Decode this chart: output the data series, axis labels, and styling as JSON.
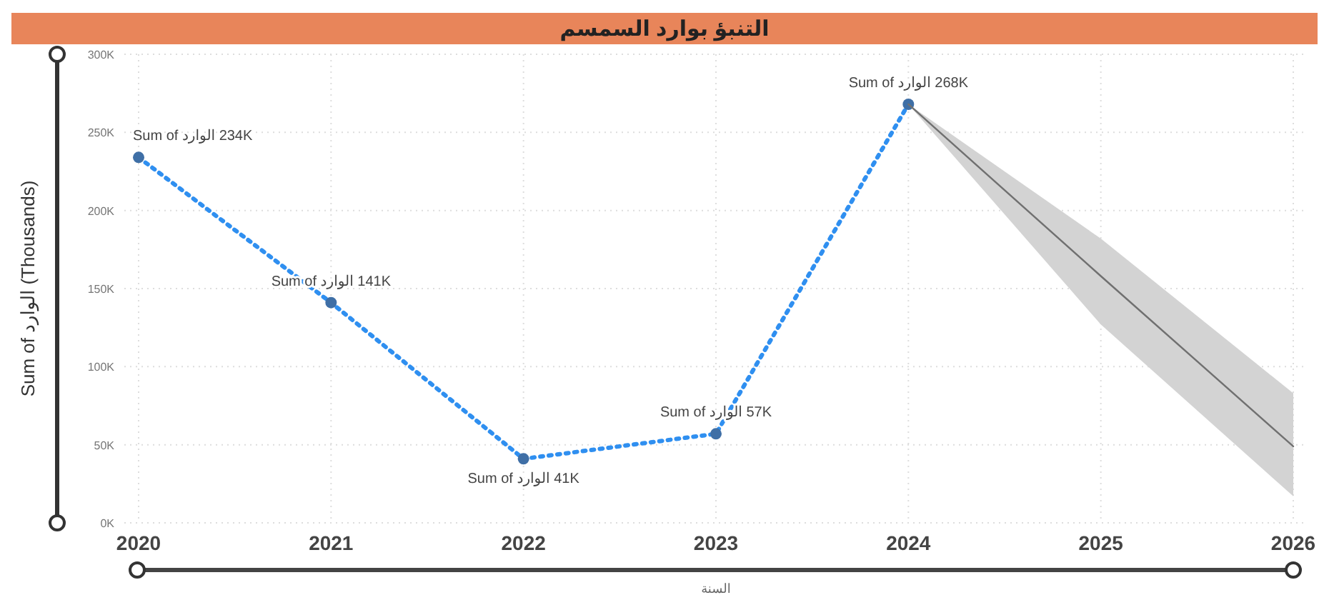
{
  "chart_data": {
    "type": "line",
    "title": "التنبؤ بوارد السمسم",
    "xlabel": "السنة",
    "ylabel": "Sum of الوارد (Thousands)",
    "xlim": [
      2020,
      2026
    ],
    "xticks": [
      2020,
      2021,
      2022,
      2023,
      2024,
      2025,
      2026
    ],
    "ylim": [
      0,
      300
    ],
    "yticks": [
      {
        "value": 0,
        "label": "0K"
      },
      {
        "value": 50,
        "label": "50K"
      },
      {
        "value": 100,
        "label": "100K"
      },
      {
        "value": 150,
        "label": "150K"
      },
      {
        "value": 200,
        "label": "200K"
      },
      {
        "value": 250,
        "label": "250K"
      },
      {
        "value": 300,
        "label": "300K"
      }
    ],
    "grid": true,
    "series": [
      {
        "color": "#2f8ff0",
        "x": [
          2020,
          2021,
          2022,
          2023,
          2024
        ],
        "values": [
          234,
          141,
          41,
          57,
          268
        ],
        "marker": "circle",
        "line_style": "dotted",
        "value_labels": [
          "Sum of الوارد 234K",
          "Sum of الوارد 141K",
          "Sum of الوارد 41K",
          "Sum of الوارد 57K",
          "Sum of الوارد 268K"
        ]
      },
      {
        "color": "#707070",
        "x": [
          2024,
          2025,
          2026
        ],
        "values": [
          268,
          158,
          49
        ],
        "lower": [
          268,
          127,
          17
        ],
        "upper": [
          268,
          182,
          83
        ],
        "marker": "none",
        "line_style": "solid"
      }
    ]
  }
}
